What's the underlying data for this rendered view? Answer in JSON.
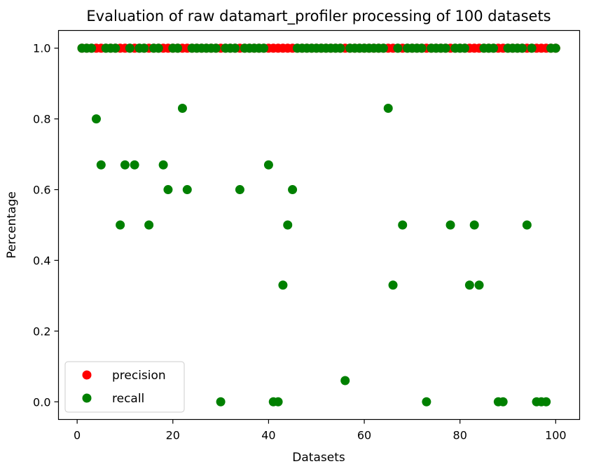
{
  "chart_data": {
    "type": "scatter",
    "title": "Evaluation of raw datamart_profiler processing of 100 datasets",
    "xlabel": "Datasets",
    "ylabel": "Percentage",
    "xlim": [
      -3.9,
      105
    ],
    "ylim": [
      -0.05,
      1.05
    ],
    "xticks": [
      0,
      20,
      40,
      60,
      80,
      100
    ],
    "yticks": [
      0.0,
      0.2,
      0.4,
      0.6,
      0.8,
      1.0
    ],
    "xtick_labels": [
      "0",
      "20",
      "40",
      "60",
      "80",
      "100"
    ],
    "ytick_labels": [
      "0.0",
      "0.2",
      "0.4",
      "0.6",
      "0.8",
      "1.0"
    ],
    "grid": false,
    "legend": {
      "position": "lower-left"
    },
    "series": [
      {
        "name": "precision",
        "color": "#ff0000",
        "x": [
          1,
          2,
          3,
          4,
          5,
          6,
          7,
          8,
          9,
          10,
          11,
          12,
          13,
          14,
          15,
          16,
          17,
          18,
          19,
          20,
          21,
          22,
          23,
          24,
          25,
          26,
          27,
          28,
          29,
          30,
          31,
          32,
          33,
          34,
          35,
          36,
          37,
          38,
          39,
          40,
          41,
          42,
          43,
          44,
          45,
          46,
          47,
          48,
          49,
          50,
          51,
          52,
          53,
          54,
          55,
          56,
          57,
          58,
          59,
          60,
          61,
          62,
          63,
          64,
          65,
          66,
          67,
          68,
          69,
          70,
          71,
          72,
          73,
          74,
          75,
          76,
          77,
          78,
          79,
          80,
          81,
          82,
          83,
          84,
          85,
          86,
          87,
          88,
          89,
          90,
          91,
          92,
          93,
          94,
          95,
          96,
          97,
          98,
          99,
          100
        ],
        "y": [
          1,
          1,
          1,
          1,
          1,
          1,
          1,
          1,
          1,
          1,
          1,
          1,
          1,
          1,
          1,
          1,
          1,
          1,
          1,
          1,
          1,
          1,
          1,
          1,
          1,
          1,
          1,
          1,
          1,
          1,
          1,
          1,
          1,
          1,
          1,
          1,
          1,
          1,
          1,
          1,
          1,
          1,
          1,
          1,
          1,
          1,
          1,
          1,
          1,
          1,
          1,
          1,
          1,
          1,
          1,
          1,
          1,
          1,
          1,
          1,
          1,
          1,
          1,
          1,
          1,
          1,
          1,
          1,
          1,
          1,
          1,
          1,
          1,
          1,
          1,
          1,
          1,
          1,
          1,
          1,
          1,
          1,
          1,
          1,
          1,
          1,
          1,
          1,
          1,
          1,
          1,
          1,
          1,
          1,
          1,
          1,
          1,
          1,
          1,
          1
        ]
      },
      {
        "name": "recall",
        "color": "#008000",
        "x": [
          1,
          2,
          3,
          4,
          5,
          6,
          7,
          8,
          9,
          10,
          11,
          12,
          13,
          14,
          15,
          16,
          17,
          18,
          19,
          20,
          21,
          22,
          23,
          24,
          25,
          26,
          27,
          28,
          29,
          30,
          31,
          32,
          33,
          34,
          35,
          36,
          37,
          38,
          39,
          40,
          41,
          42,
          43,
          44,
          45,
          46,
          47,
          48,
          49,
          50,
          51,
          52,
          53,
          54,
          55,
          56,
          57,
          58,
          59,
          60,
          61,
          62,
          63,
          64,
          65,
          66,
          67,
          68,
          69,
          70,
          71,
          72,
          73,
          74,
          75,
          76,
          77,
          78,
          79,
          80,
          81,
          82,
          83,
          84,
          85,
          86,
          87,
          88,
          89,
          90,
          91,
          92,
          93,
          94,
          95,
          96,
          97,
          98,
          99,
          100
        ],
        "y": [
          1,
          1,
          1,
          0.8,
          0.67,
          1,
          1,
          1,
          0.5,
          0.67,
          1,
          0.67,
          1,
          1,
          0.5,
          1,
          1,
          0.67,
          0.6,
          1,
          1,
          0.83,
          0.6,
          1,
          1,
          1,
          1,
          1,
          1,
          0,
          1,
          1,
          1,
          0.6,
          1,
          1,
          1,
          1,
          1,
          0.67,
          0,
          0,
          0.33,
          0.5,
          0.6,
          1,
          1,
          1,
          1,
          1,
          1,
          1,
          1,
          1,
          1,
          0.06,
          1,
          1,
          1,
          1,
          1,
          1,
          1,
          1,
          0.83,
          0.33,
          1,
          0.5,
          1,
          1,
          1,
          1,
          0,
          1,
          1,
          1,
          1,
          0.5,
          1,
          1,
          1,
          0.33,
          0.5,
          0.33,
          1,
          1,
          1,
          0,
          0,
          1,
          1,
          1,
          1,
          0.5,
          1,
          0,
          0,
          0,
          1,
          1
        ]
      }
    ]
  }
}
